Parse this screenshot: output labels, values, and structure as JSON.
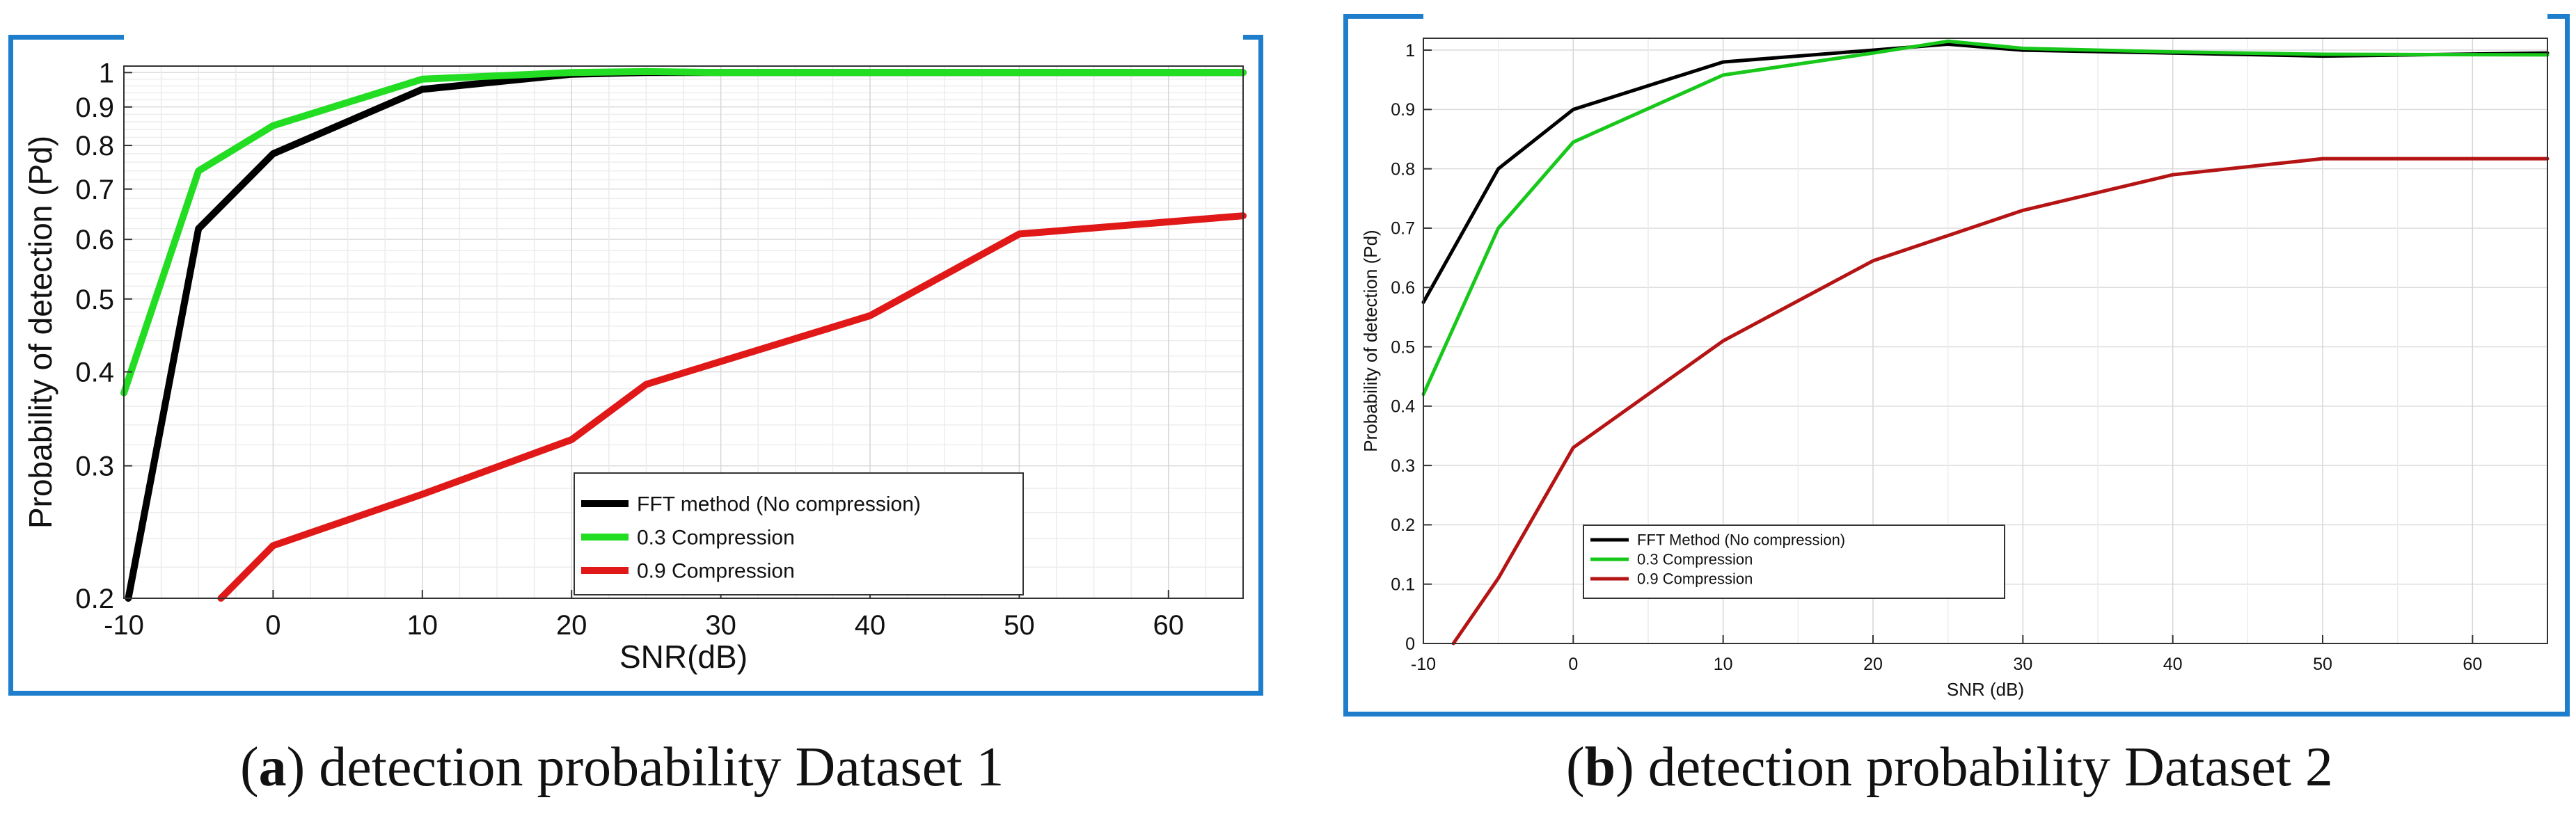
{
  "colors": {
    "frame": "#1f7ecb",
    "fft_series": "#000000",
    "c03_a": "#22dd22",
    "c09_a": "#e01818",
    "c03_b": "#17c81a",
    "c09_b": "#b51414"
  },
  "captions": [
    {
      "letter": "a",
      "text": "detection probability Dataset 1"
    },
    {
      "letter": "b",
      "text": "detection probability Dataset 2"
    }
  ],
  "chart_data": [
    {
      "type": "line",
      "panel": "a",
      "title": "",
      "xlabel": "SNR(dB)",
      "ylabel": "Probability of detection (Pd)",
      "xlim": [
        -10,
        65
      ],
      "ylim": [
        0.2,
        1.02
      ],
      "yscale": "log",
      "grid": true,
      "x_ticks": [
        -10,
        0,
        10,
        20,
        30,
        40,
        50,
        60
      ],
      "y_ticks": [
        0.2,
        0.3,
        0.4,
        0.5,
        0.6,
        0.7,
        0.8,
        0.9,
        1
      ],
      "y_tick_labels": [
        "0.2",
        "0.3",
        "0.4",
        "0.5",
        "0.6",
        "0.7",
        "0.8",
        "0.9",
        "1"
      ],
      "legend_position": "lower-middle",
      "series": [
        {
          "name": "FFT method (No compression)",
          "x": [
            -9.7,
            -5,
            0,
            10,
            20,
            25,
            30,
            40,
            50,
            65
          ],
          "y": [
            0.2,
            0.62,
            0.78,
            0.95,
            0.995,
            1.0,
            1.0,
            1.0,
            1.0,
            1.0
          ]
        },
        {
          "name": "0.3 Compression",
          "x": [
            -10,
            -5,
            0,
            10,
            20,
            25,
            30,
            40,
            50,
            65
          ],
          "y": [
            0.375,
            0.74,
            0.85,
            0.98,
            1.0,
            1.003,
            1.0,
            1.0,
            1.0,
            1.0
          ]
        },
        {
          "name": "0.9 Compression",
          "x": [
            -3.5,
            0,
            10,
            20,
            25,
            40,
            50,
            65
          ],
          "y": [
            0.2,
            0.235,
            0.275,
            0.325,
            0.385,
            0.475,
            0.61,
            0.645
          ]
        }
      ]
    },
    {
      "type": "line",
      "panel": "b",
      "title": "",
      "xlabel": "SNR (dB)",
      "ylabel": "Probability of detection (Pd)",
      "xlim": [
        -10,
        65
      ],
      "ylim": [
        0,
        1.02
      ],
      "yscale": "linear",
      "grid": true,
      "x_ticks": [
        -10,
        0,
        10,
        20,
        30,
        40,
        50,
        60
      ],
      "y_ticks": [
        0,
        0.1,
        0.2,
        0.3,
        0.4,
        0.5,
        0.6,
        0.7,
        0.8,
        0.9,
        1
      ],
      "y_tick_labels": [
        "0",
        "0.1",
        "0.2",
        "0.3",
        "0.4",
        "0.5",
        "0.6",
        "0.7",
        "0.8",
        "0.9",
        "1"
      ],
      "legend_position": "lower-left",
      "series": [
        {
          "name": "FFT Method (No compression)",
          "x": [
            -10,
            -5,
            0,
            10,
            20,
            25,
            30,
            40,
            50,
            65
          ],
          "y": [
            0.575,
            0.8,
            0.9,
            0.98,
            1.0,
            1.01,
            1.0,
            0.995,
            0.99,
            0.995
          ]
        },
        {
          "name": "0.3 Compression",
          "x": [
            -10,
            -5,
            0,
            10,
            20,
            25,
            30,
            40,
            50,
            65
          ],
          "y": [
            0.42,
            0.7,
            0.845,
            0.958,
            0.995,
            1.015,
            1.003,
            0.997,
            0.993,
            0.992
          ]
        },
        {
          "name": "0.9 Compression",
          "x": [
            -8,
            -5,
            0,
            10,
            20,
            30,
            40,
            50,
            65
          ],
          "y": [
            0,
            0.11,
            0.33,
            0.51,
            0.645,
            0.73,
            0.79,
            0.817,
            0.817
          ]
        }
      ]
    }
  ]
}
